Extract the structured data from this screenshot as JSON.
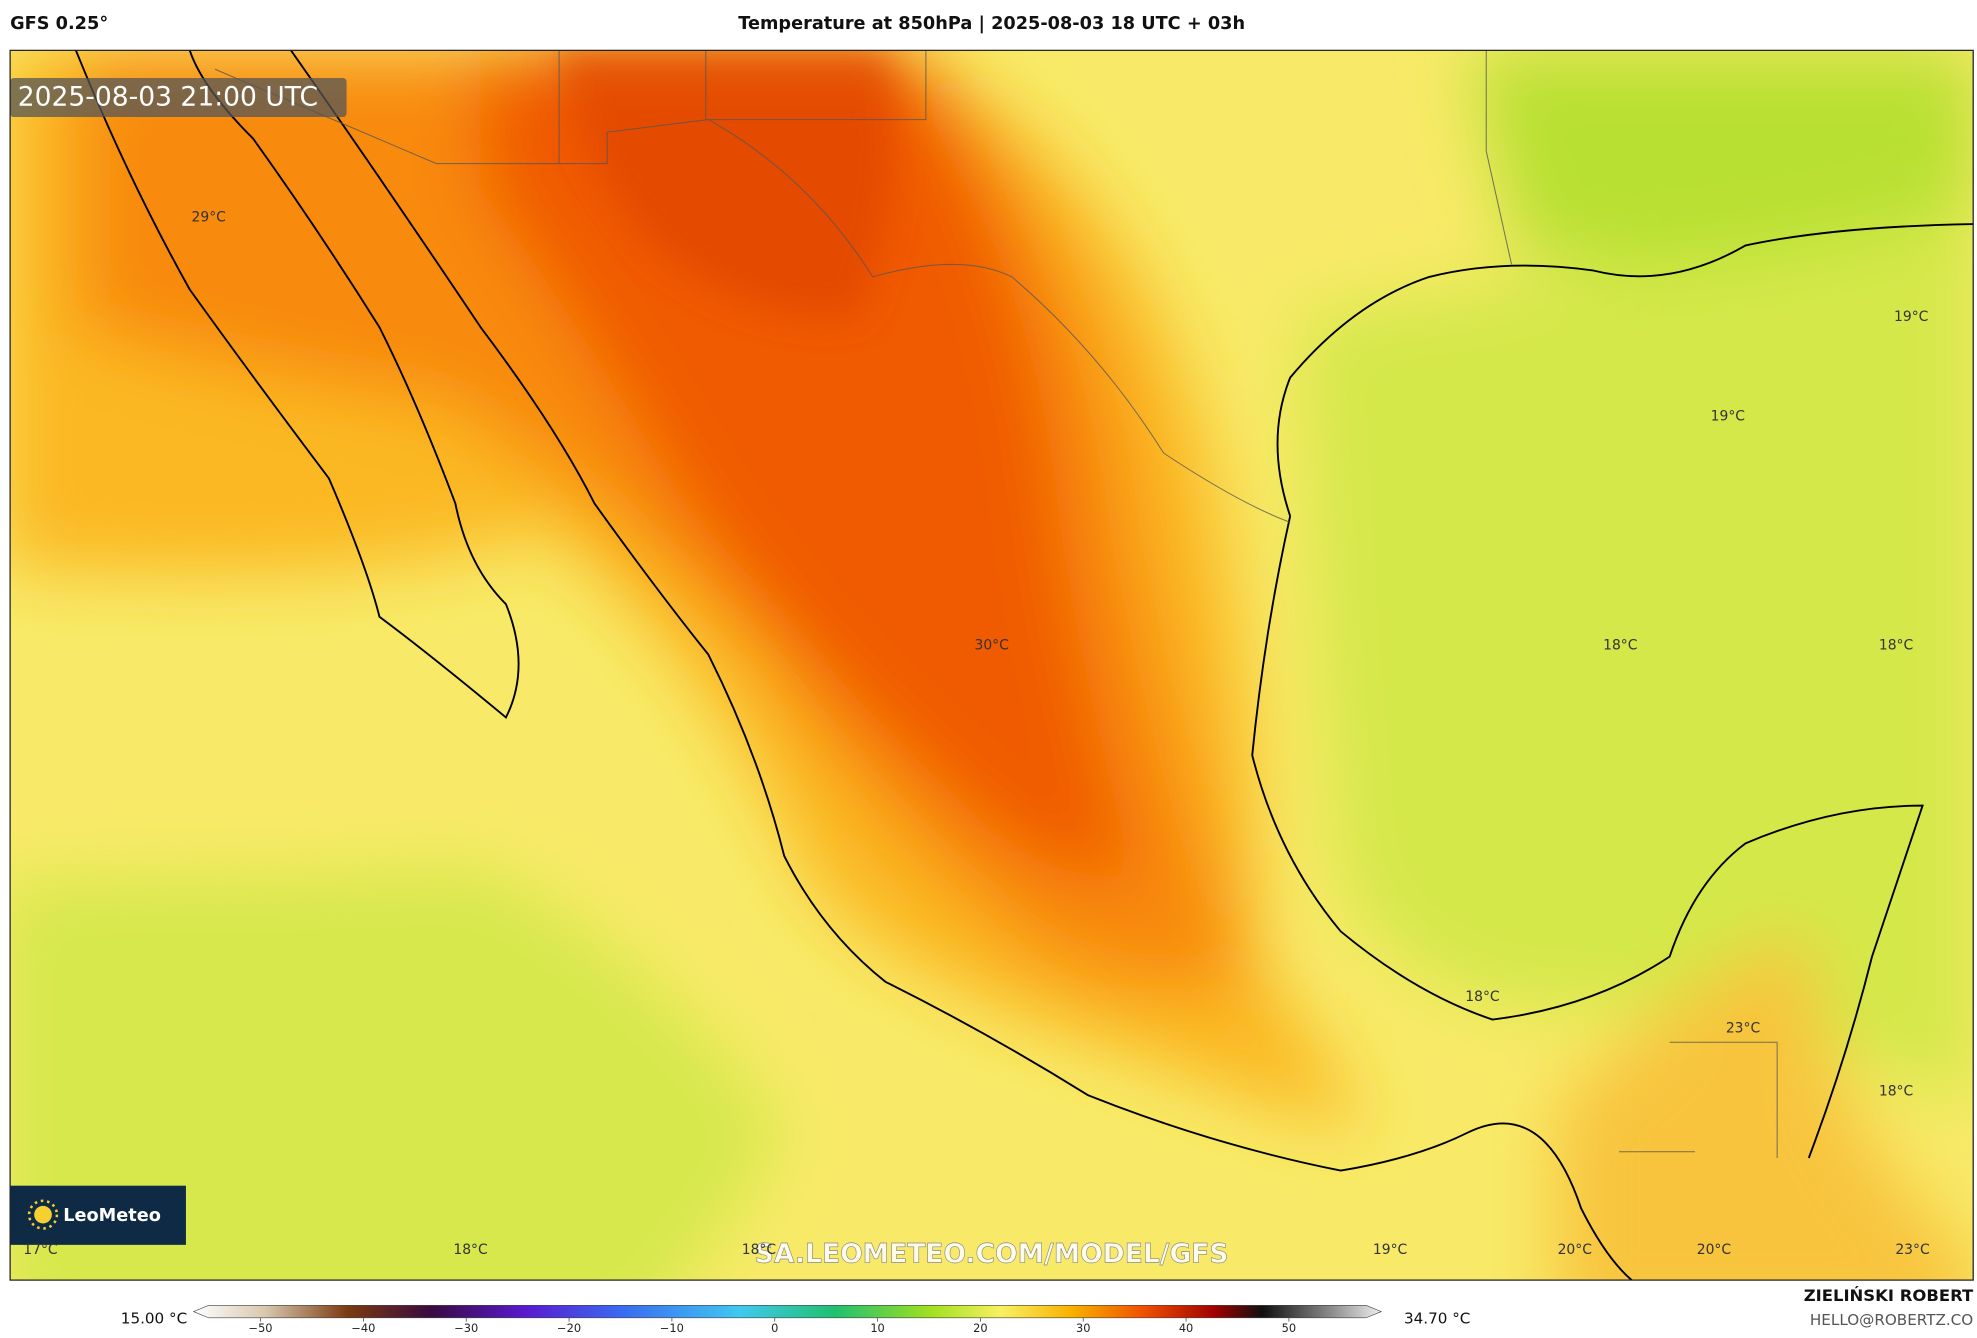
{
  "header": {
    "model": "GFS 0.25°",
    "title": "Temperature at 850hPa | 2025-08-03 18 UTC + 03h"
  },
  "map": {
    "timestamp": "2025-08-03 21:00 UTC",
    "logo": "LeoMeteo",
    "watermark": "SA.LEOMETEO.COM/MODEL/GFS",
    "labels": [
      "29°C",
      "30°C",
      "19°C",
      "19°C",
      "18°C",
      "18°C",
      "18°C",
      "23°C",
      "18°C",
      "17°C",
      "18°C",
      "18°C",
      "19°C",
      "20°C",
      "20°C",
      "23°C"
    ]
  },
  "colorbar": {
    "min_label": "15.00 °C",
    "max_label": "34.70 °C",
    "ticks": [
      "−50",
      "−40",
      "−30",
      "−20",
      "−10",
      "0",
      "10",
      "20",
      "30",
      "40",
      "50"
    ]
  },
  "footer": {
    "author": "ZIELIŃSKI ROBERT",
    "email": "HELLO@ROBERTZ.CO"
  }
}
